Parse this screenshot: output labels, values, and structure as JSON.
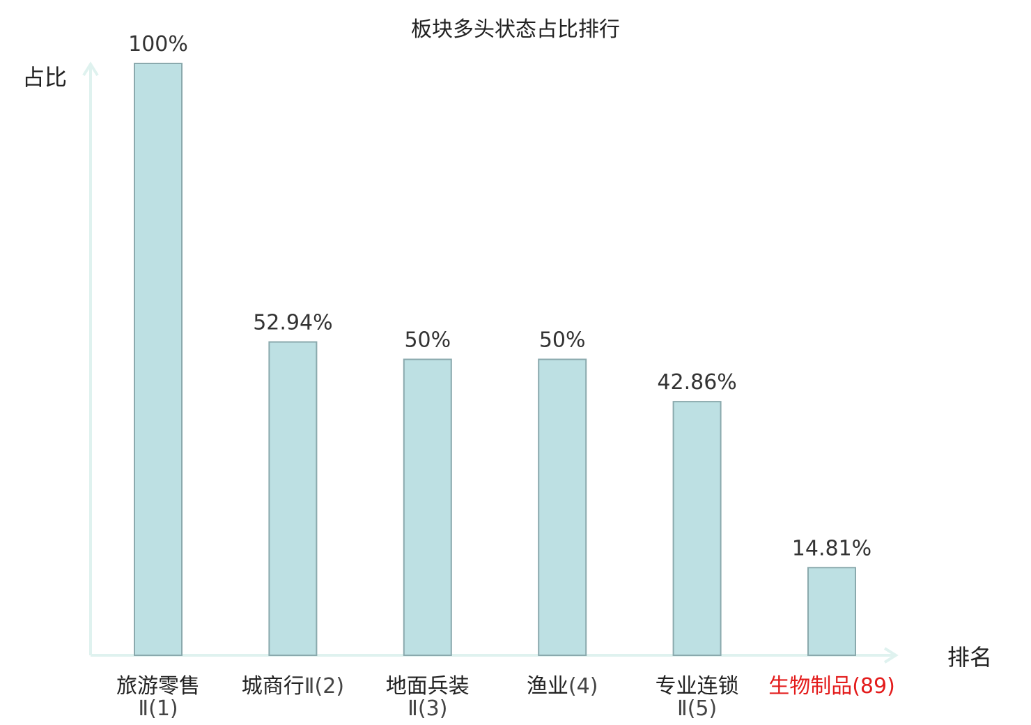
{
  "chart_data": {
    "type": "bar",
    "title": "板块多头状态占比排行",
    "ylabel": "占比",
    "xlabel": "排名",
    "ylim": [
      0,
      100
    ],
    "grid": false,
    "categories": [
      {
        "name": "旅游零售",
        "suffix": "Ⅱ(1)",
        "lines": [
          "旅游零售",
          "Ⅱ(1)"
        ],
        "highlight": false
      },
      {
        "name": "城商行",
        "suffix": "Ⅱ(2)",
        "lines": [
          "城商行Ⅱ(2)"
        ],
        "highlight": false
      },
      {
        "name": "地面兵装",
        "suffix": "Ⅱ(3)",
        "lines": [
          "地面兵装",
          "Ⅱ(3)"
        ],
        "highlight": false
      },
      {
        "name": "渔业",
        "suffix": "(4)",
        "lines": [
          "渔业(4)"
        ],
        "highlight": false
      },
      {
        "name": "专业连锁",
        "suffix": "Ⅱ(5)",
        "lines": [
          "专业连锁",
          "Ⅱ(5)"
        ],
        "highlight": false
      },
      {
        "name": "生物制品",
        "suffix": "(89)",
        "lines": [
          "生物制品(89)"
        ],
        "highlight": true
      }
    ],
    "values": [
      100,
      52.94,
      50,
      50,
      42.86,
      14.81
    ],
    "value_labels": [
      "100%",
      "52.94%",
      "50%",
      "50%",
      "42.86%",
      "14.81%"
    ]
  },
  "colors": {
    "bar_fill": "#bde0e3",
    "bar_stroke": "#8aa9ad",
    "axis": "#dff2ef",
    "highlight": "#e31b1b",
    "normal_text": "#222222",
    "suffix_text": "#444444"
  }
}
